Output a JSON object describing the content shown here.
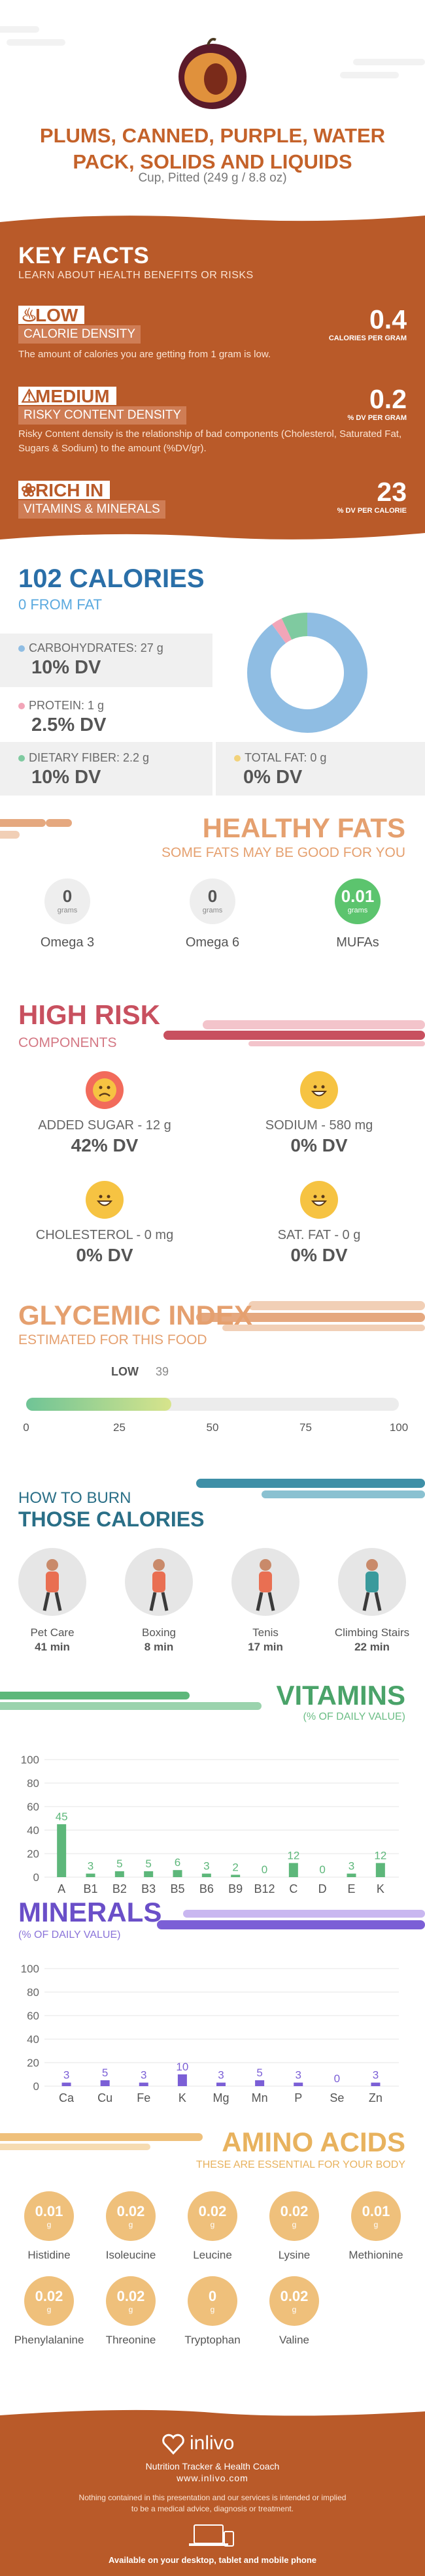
{
  "header": {
    "title": "PLUMS, CANNED, PURPLE, WATER PACK, SOLIDS AND LIQUIDS",
    "serving": "Cup, Pitted (249 g / 8.8 oz)"
  },
  "key_facts": {
    "title": "KEY FACTS",
    "subtitle": "LEARN ABOUT HEALTH BENEFITS OR RISKS",
    "calorie_density": {
      "level": "LOW",
      "label": "CALORIE DENSITY",
      "value": "0.4",
      "unit": "CALORIES PER GRAM",
      "description": "The amount of calories you are getting from 1 gram is low."
    },
    "risky_density": {
      "level": "MEDIUM",
      "label": "RISKY CONTENT DENSITY",
      "value": "0.2",
      "unit": "% DV PER GRAM",
      "description": "Risky Content density is the relationship of bad components (Cholesterol, Saturated Fat, Sugars & Sodium) to the amount (%DV/gr)."
    },
    "rich_in": {
      "level": "RICH IN",
      "label": "VITAMINS & MINERALS",
      "value": "23",
      "unit": "% DV PER CALORIE"
    }
  },
  "calories": {
    "title": "102 CALORIES",
    "from_fat": "0 FROM FAT",
    "carbohydrates": {
      "label": "CARBOHYDRATES: 27 g",
      "dv": "10% DV",
      "color": "#8fbde3"
    },
    "protein": {
      "label": "PROTEIN: 1 g",
      "dv": "2.5% DV",
      "color": "#f2a5b8"
    },
    "fiber": {
      "label": "DIETARY FIBER: 2.2 g",
      "dv": "10% DV",
      "color": "#7fcaa0"
    },
    "fat": {
      "label": "TOTAL FAT: 0 g",
      "dv": "0% DV",
      "color": "#f2d27a"
    },
    "donut": [
      {
        "name": "carbohydrates",
        "value": 90,
        "color": "#8fbde3"
      },
      {
        "name": "protein",
        "value": 3,
        "color": "#f2a5b8"
      },
      {
        "name": "fiber",
        "value": 7,
        "color": "#7fcaa0"
      }
    ]
  },
  "healthy_fats": {
    "title": "HEALTHY FATS",
    "subtitle": "SOME FATS MAY BE GOOD FOR YOU",
    "items": [
      {
        "value": "0",
        "unit": "grams",
        "name": "Omega 3"
      },
      {
        "value": "0",
        "unit": "grams",
        "name": "Omega 6"
      },
      {
        "value": "0.01",
        "unit": "grams",
        "name": "MUFAs"
      }
    ]
  },
  "high_risk": {
    "title": "HIGH RISK",
    "subtitle": "COMPONENTS",
    "items": [
      {
        "label": "ADDED SUGAR - 12 g",
        "dv": "42% DV",
        "mood": "sad"
      },
      {
        "label": "SODIUM - 580 mg",
        "dv": "0% DV",
        "mood": "happy"
      },
      {
        "label": "CHOLESTEROL - 0 mg",
        "dv": "0% DV",
        "mood": "happy"
      },
      {
        "label": "SAT. FAT - 0 g",
        "dv": "0% DV",
        "mood": "happy"
      }
    ]
  },
  "glycemic": {
    "title": "GLYCEMIC INDEX",
    "subtitle": "ESTIMATED FOR THIS FOOD",
    "level": "LOW",
    "value": 39,
    "value_text": "39",
    "ticks": [
      "0",
      "25",
      "50",
      "75",
      "100"
    ]
  },
  "burn": {
    "title_small": "HOW TO BURN",
    "title_big": "THOSE CALORIES",
    "activities": [
      {
        "name": "Pet Care",
        "time": "41 min",
        "icon": "dog-walker-icon"
      },
      {
        "name": "Boxing",
        "time": "8 min",
        "icon": "boxer-icon"
      },
      {
        "name": "Tenis",
        "time": "17 min",
        "icon": "tennis-player-icon"
      },
      {
        "name": "Climbing Stairs",
        "time": "22 min",
        "icon": "stairs-climber-icon"
      }
    ]
  },
  "vitamins": {
    "title": "VITAMINS",
    "subtitle": "(% OF DAILY VALUE)",
    "chart_data": {
      "type": "bar",
      "categories": [
        "A",
        "B1",
        "B2",
        "B3",
        "B5",
        "B6",
        "B9",
        "B12",
        "C",
        "D",
        "E",
        "K"
      ],
      "values": [
        45,
        3,
        5,
        5,
        6,
        3,
        2,
        0,
        12,
        0,
        3,
        12
      ],
      "yticks": [
        0,
        20,
        40,
        60,
        80,
        100
      ],
      "ylim": [
        0,
        100
      ],
      "color": "#5db77a"
    }
  },
  "minerals": {
    "title": "MINERALS",
    "subtitle": "(% OF DAILY VALUE)",
    "chart_data": {
      "type": "bar",
      "categories": [
        "Ca",
        "Cu",
        "Fe",
        "K",
        "Mg",
        "Mn",
        "P",
        "Se",
        "Zn"
      ],
      "values": [
        3,
        5,
        3,
        10,
        3,
        5,
        3,
        0,
        3
      ],
      "yticks": [
        0,
        20,
        40,
        60,
        80,
        100
      ],
      "ylim": [
        0,
        100
      ],
      "color": "#7b5fd6"
    }
  },
  "amino": {
    "title": "AMINO ACIDS",
    "subtitle": "THESE ARE ESSENTIAL FOR YOUR BODY",
    "items": [
      {
        "value": "0.01",
        "unit": "g",
        "name": "Histidine"
      },
      {
        "value": "0.02",
        "unit": "g",
        "name": "Isoleucine"
      },
      {
        "value": "0.02",
        "unit": "g",
        "name": "Leucine"
      },
      {
        "value": "0.02",
        "unit": "g",
        "name": "Lysine"
      },
      {
        "value": "0.01",
        "unit": "g",
        "name": "Methionine"
      },
      {
        "value": "0.02",
        "unit": "g",
        "name": "Phenylalanine"
      },
      {
        "value": "0.02",
        "unit": "g",
        "name": "Threonine"
      },
      {
        "value": "0",
        "unit": "g",
        "name": "Tryptophan"
      },
      {
        "value": "0.02",
        "unit": "g",
        "name": "Valine"
      }
    ]
  },
  "footer": {
    "brand": "inlivo",
    "tagline": "Nutrition Tracker & Health Coach",
    "site": "www.inlivo.com",
    "disclaimer": "Nothing contained in this presentation and our services is intended or implied to be a medical advice, diagnosis or treatment.",
    "available": "Available on your desktop, tablet and mobile phone"
  }
}
